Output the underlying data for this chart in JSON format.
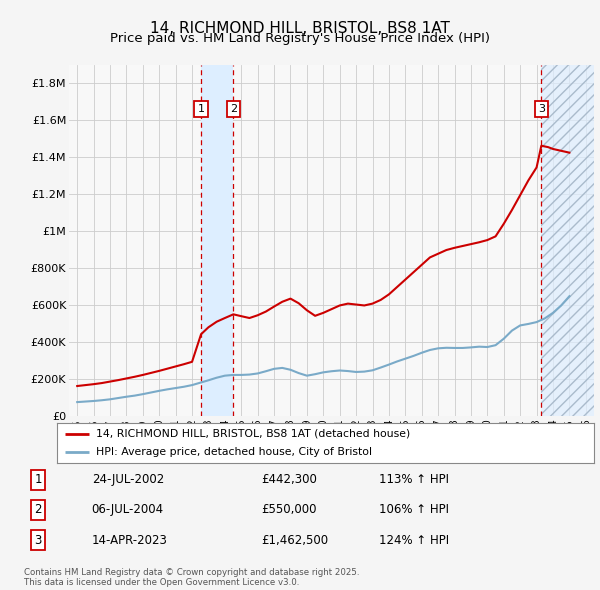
{
  "title": "14, RICHMOND HILL, BRISTOL, BS8 1AT",
  "subtitle": "Price paid vs. HM Land Registry's House Price Index (HPI)",
  "title_fontsize": 11,
  "subtitle_fontsize": 9.5,
  "hpi_years": [
    1995.0,
    1995.5,
    1996.0,
    1996.5,
    1997.0,
    1997.5,
    1998.0,
    1998.5,
    1999.0,
    1999.5,
    2000.0,
    2000.5,
    2001.0,
    2001.5,
    2002.0,
    2002.5,
    2003.0,
    2003.5,
    2004.0,
    2004.5,
    2005.0,
    2005.5,
    2006.0,
    2006.5,
    2007.0,
    2007.5,
    2008.0,
    2008.5,
    2009.0,
    2009.5,
    2010.0,
    2010.5,
    2011.0,
    2011.5,
    2012.0,
    2012.5,
    2013.0,
    2013.5,
    2014.0,
    2014.5,
    2015.0,
    2015.5,
    2016.0,
    2016.5,
    2017.0,
    2017.5,
    2018.0,
    2018.5,
    2019.0,
    2019.5,
    2020.0,
    2020.5,
    2021.0,
    2021.5,
    2022.0,
    2022.5,
    2023.0,
    2023.5,
    2024.0,
    2024.5,
    2025.0
  ],
  "hpi_values": [
    75000,
    78000,
    81000,
    85000,
    90000,
    97000,
    104000,
    110000,
    118000,
    127000,
    136000,
    144000,
    151000,
    158000,
    167000,
    180000,
    193000,
    207000,
    218000,
    222000,
    222000,
    224000,
    230000,
    242000,
    255000,
    260000,
    250000,
    232000,
    218000,
    226000,
    236000,
    242000,
    246000,
    243000,
    238000,
    240000,
    247000,
    262000,
    278000,
    295000,
    310000,
    325000,
    342000,
    357000,
    366000,
    369000,
    368000,
    368000,
    371000,
    375000,
    373000,
    383000,
    418000,
    462000,
    490000,
    498000,
    508000,
    528000,
    558000,
    598000,
    648000
  ],
  "property_years": [
    1995.0,
    1995.5,
    1996.0,
    1996.5,
    1997.0,
    1997.5,
    1998.0,
    1998.5,
    1999.0,
    1999.5,
    2000.0,
    2000.5,
    2001.0,
    2001.5,
    2002.0,
    2002.55,
    2003.0,
    2003.5,
    2004.0,
    2004.52,
    2005.0,
    2005.5,
    2006.0,
    2006.5,
    2007.0,
    2007.5,
    2008.0,
    2008.5,
    2009.0,
    2009.5,
    2010.0,
    2010.5,
    2011.0,
    2011.5,
    2012.0,
    2012.5,
    2013.0,
    2013.5,
    2014.0,
    2014.5,
    2015.0,
    2015.5,
    2016.0,
    2016.5,
    2017.0,
    2017.5,
    2018.0,
    2018.5,
    2019.0,
    2019.5,
    2020.0,
    2020.5,
    2021.0,
    2021.5,
    2022.0,
    2022.5,
    2023.0,
    2023.29,
    2023.7,
    2024.0,
    2024.5,
    2025.0
  ],
  "property_values": [
    162000,
    167000,
    172000,
    178000,
    186000,
    194000,
    203000,
    212000,
    222000,
    233000,
    244000,
    256000,
    268000,
    280000,
    293000,
    442300,
    480000,
    510000,
    530000,
    550000,
    540000,
    530000,
    545000,
    565000,
    592000,
    618000,
    635000,
    610000,
    572000,
    542000,
    558000,
    578000,
    598000,
    608000,
    603000,
    598000,
    608000,
    628000,
    658000,
    698000,
    738000,
    778000,
    818000,
    858000,
    878000,
    898000,
    910000,
    920000,
    930000,
    940000,
    952000,
    972000,
    1040000,
    1115000,
    1195000,
    1275000,
    1345000,
    1462500,
    1455000,
    1445000,
    1435000,
    1425000
  ],
  "sales": [
    {
      "num": 1,
      "year": 2002.55,
      "price": 442300,
      "date": "24-JUL-2002",
      "price_str": "£442,300",
      "pct": "113% ↑ HPI"
    },
    {
      "num": 2,
      "year": 2004.52,
      "price": 550000,
      "date": "06-JUL-2004",
      "price_str": "£550,000",
      "pct": "106% ↑ HPI"
    },
    {
      "num": 3,
      "year": 2023.29,
      "price": 1462500,
      "date": "14-APR-2023",
      "price_str": "£1,462,500",
      "pct": "124% ↑ HPI"
    }
  ],
  "ylim": [
    0,
    1900000
  ],
  "xlim": [
    1994.5,
    2026.5
  ],
  "yticks": [
    0,
    200000,
    400000,
    600000,
    800000,
    1000000,
    1200000,
    1400000,
    1600000,
    1800000
  ],
  "ytick_labels": [
    "£0",
    "£200K",
    "£400K",
    "£600K",
    "£800K",
    "£1M",
    "£1.2M",
    "£1.4M",
    "£1.6M",
    "£1.8M"
  ],
  "xticks": [
    1995,
    1996,
    1997,
    1998,
    1999,
    2000,
    2001,
    2002,
    2003,
    2004,
    2005,
    2006,
    2007,
    2008,
    2009,
    2010,
    2011,
    2012,
    2013,
    2014,
    2015,
    2016,
    2017,
    2018,
    2019,
    2020,
    2021,
    2022,
    2023,
    2024,
    2025,
    2026
  ],
  "red_color": "#cc0000",
  "blue_color": "#7aaac8",
  "shade_color": "#ddeeff",
  "grid_color": "#cccccc",
  "bg_color": "#f5f5f5",
  "plot_bg": "#f8f8f8",
  "legend_label_red": "14, RICHMOND HILL, BRISTOL, BS8 1AT (detached house)",
  "legend_label_blue": "HPI: Average price, detached house, City of Bristol",
  "footer": "Contains HM Land Registry data © Crown copyright and database right 2025.\nThis data is licensed under the Open Government Licence v3.0."
}
